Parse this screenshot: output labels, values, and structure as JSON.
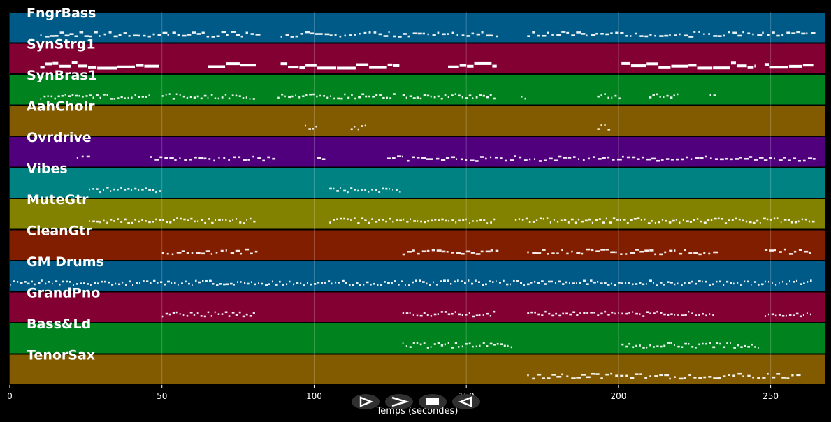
{
  "chart_data": {
    "type": "piano-roll",
    "xlabel": "Temps (secondes)",
    "xlim": [
      0,
      268
    ],
    "xticks": [
      0,
      50,
      100,
      150,
      200,
      250
    ],
    "grid": true,
    "tracks": [
      {
        "name": "FngrBass",
        "color": "#005a87",
        "segments": [
          {
            "start": 10,
            "end": 82,
            "style": "dashed"
          },
          {
            "start": 89,
            "end": 160,
            "style": "dashed"
          },
          {
            "start": 170,
            "end": 264,
            "style": "dashed"
          }
        ]
      },
      {
        "name": "SynStrg1",
        "color": "#820032",
        "segments": [
          {
            "start": 10,
            "end": 49,
            "style": "solid"
          },
          {
            "start": 65,
            "end": 81,
            "style": "solid"
          },
          {
            "start": 89,
            "end": 128,
            "style": "solid"
          },
          {
            "start": 144,
            "end": 160,
            "style": "solid"
          },
          {
            "start": 201,
            "end": 245,
            "style": "solid"
          },
          {
            "start": 248,
            "end": 264,
            "style": "solid"
          }
        ]
      },
      {
        "name": "SynBras1",
        "color": "#00821e",
        "segments": [
          {
            "start": 10,
            "end": 46,
            "style": "dotted"
          },
          {
            "start": 50,
            "end": 81,
            "style": "dotted"
          },
          {
            "start": 88,
            "end": 126,
            "style": "dotted"
          },
          {
            "start": 129,
            "end": 160,
            "style": "dotted"
          },
          {
            "start": 168,
            "end": 170,
            "style": "dotted"
          },
          {
            "start": 193,
            "end": 201,
            "style": "dotted"
          },
          {
            "start": 210,
            "end": 220,
            "style": "dotted"
          },
          {
            "start": 230,
            "end": 232,
            "style": "dotted"
          }
        ]
      },
      {
        "name": "AahChoir",
        "color": "#825a00",
        "segments": [
          {
            "start": 97,
            "end": 101,
            "style": "dotted"
          },
          {
            "start": 112,
            "end": 117,
            "style": "dotted"
          },
          {
            "start": 193,
            "end": 197,
            "style": "dotted"
          }
        ]
      },
      {
        "name": "Ovrdrive",
        "color": "#50007d",
        "segments": [
          {
            "start": 22,
            "end": 26,
            "style": "dashed"
          },
          {
            "start": 46,
            "end": 87,
            "style": "dashed"
          },
          {
            "start": 101,
            "end": 104,
            "style": "dashed"
          },
          {
            "start": 124,
            "end": 264,
            "style": "dashed"
          }
        ]
      },
      {
        "name": "Vibes",
        "color": "#008282",
        "segments": [
          {
            "start": 26,
            "end": 50,
            "style": "dotted"
          },
          {
            "start": 105,
            "end": 128,
            "style": "dotted"
          }
        ]
      },
      {
        "name": "MuteGtr",
        "color": "#828200",
        "segments": [
          {
            "start": 26,
            "end": 81,
            "style": "dotted"
          },
          {
            "start": 105,
            "end": 160,
            "style": "dotted"
          },
          {
            "start": 166,
            "end": 264,
            "style": "dotted"
          }
        ]
      },
      {
        "name": "CleanGtr",
        "color": "#821e00",
        "segments": [
          {
            "start": 50,
            "end": 81,
            "style": "dashed"
          },
          {
            "start": 129,
            "end": 160,
            "style": "dashed"
          },
          {
            "start": 170,
            "end": 232,
            "style": "dashed"
          },
          {
            "start": 248,
            "end": 264,
            "style": "dashed"
          }
        ]
      },
      {
        "name": "GM Drums",
        "color": "#005a87",
        "segments": [
          {
            "start": 0,
            "end": 264,
            "style": "dotted"
          }
        ]
      },
      {
        "name": "GrandPno",
        "color": "#820032",
        "segments": [
          {
            "start": 50,
            "end": 81,
            "style": "dotted"
          },
          {
            "start": 129,
            "end": 160,
            "style": "dotted"
          },
          {
            "start": 170,
            "end": 232,
            "style": "dotted"
          },
          {
            "start": 248,
            "end": 264,
            "style": "dotted"
          }
        ]
      },
      {
        "name": "Bass&Ld",
        "color": "#00821e",
        "segments": [
          {
            "start": 129,
            "end": 165,
            "style": "dotted"
          },
          {
            "start": 201,
            "end": 246,
            "style": "dotted"
          }
        ]
      },
      {
        "name": "TenorSax",
        "color": "#825a00",
        "segments": [
          {
            "start": 170,
            "end": 260,
            "style": "dashed"
          }
        ]
      }
    ]
  },
  "controls": [
    {
      "id": "play",
      "icon": "play-icon"
    },
    {
      "id": "fast-forward",
      "icon": "fast-forward-icon"
    },
    {
      "id": "stop",
      "icon": "stop-icon"
    },
    {
      "id": "rewind",
      "icon": "rewind-icon"
    }
  ]
}
